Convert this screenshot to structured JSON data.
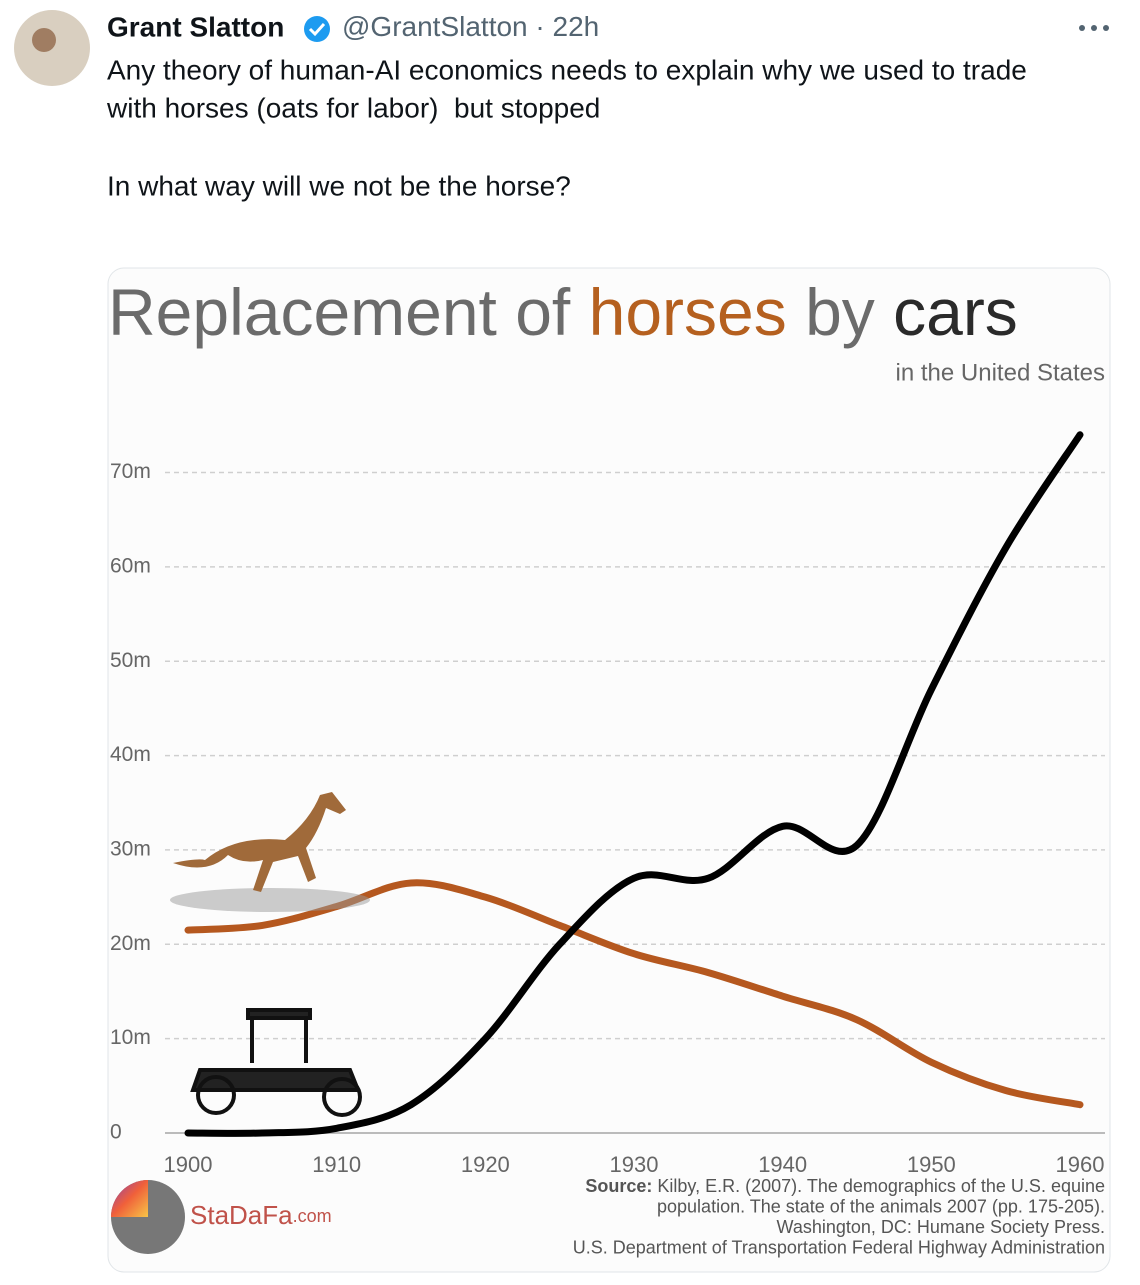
{
  "tweet": {
    "name": "Grant Slatton",
    "handle": "@GrantSlatton",
    "time": "· 22h",
    "text": [
      "Any theory of human-AI economics needs to explain why we used to trade",
      "with horses (oats for labor)  but stopped",
      "In what way will we not be the horse?"
    ]
  },
  "chart_data": {
    "type": "line",
    "title_parts": [
      {
        "text": "Replacement of",
        "color": "#6b6b6b"
      },
      {
        "text": "horses",
        "color": "#b5601f"
      },
      {
        "text": "by",
        "color": "#6b6b6b"
      },
      {
        "text": "cars",
        "color": "#2a2a2a"
      }
    ],
    "subtitle": "in the United States",
    "x": [
      1900,
      1905,
      1910,
      1915,
      1920,
      1925,
      1930,
      1935,
      1940,
      1945,
      1950,
      1955,
      1960
    ],
    "series": [
      {
        "name": "horses",
        "color": "#b5581f",
        "values": [
          21.5,
          22,
          24,
          26.5,
          25,
          22,
          19,
          17,
          14.5,
          12,
          7.5,
          4.5,
          3
        ]
      },
      {
        "name": "cars",
        "color": "#000000",
        "values": [
          0,
          0,
          0.5,
          3,
          10,
          20,
          27,
          27,
          32.5,
          30.5,
          47,
          62,
          74
        ]
      }
    ],
    "xlim": [
      1900,
      1960
    ],
    "xticks": [
      1900,
      1910,
      1920,
      1930,
      1940,
      1950,
      1960
    ],
    "ylim": [
      0,
      78
    ],
    "yticks": [
      0,
      {
        "value": 10,
        "label": "10m"
      },
      {
        "value": 20,
        "label": "20m"
      },
      {
        "value": 30,
        "label": "30m"
      },
      {
        "value": 40,
        "label": "40m"
      },
      {
        "value": 50,
        "label": "50m"
      },
      {
        "value": 60,
        "label": "60m"
      },
      {
        "value": 70,
        "label": "70m"
      }
    ],
    "grid": true,
    "source_label": "Source:",
    "source": [
      "Kilby, E.R. (2007). The demographics of the U.S. equine",
      "population. The state of the animals 2007 (pp. 175-205).",
      "Washington, DC: Humane Society Press.",
      "U.S. Department of Transportation Federal Highway Administration"
    ],
    "logo": {
      "name": "StaDaFa",
      "suffix": ".com"
    }
  }
}
